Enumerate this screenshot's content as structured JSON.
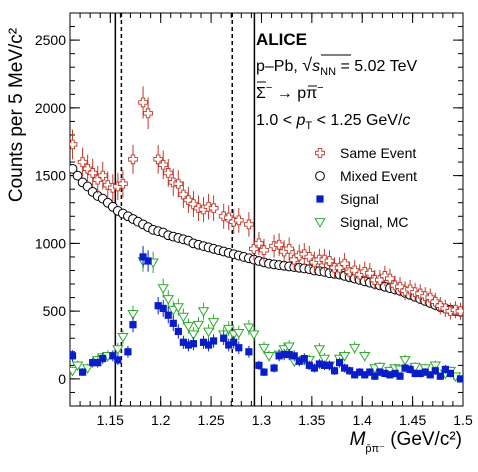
{
  "chart_data": {
    "type": "scatter",
    "title": "",
    "xlabel": {
      "main": "M",
      "subscript": "p̄π⁻",
      "unit": " (GeV/c²)"
    },
    "ylabel": "Counts per 5 MeV/c²",
    "xlim": [
      1.11,
      1.5
    ],
    "ylim": [
      -200,
      2700
    ],
    "xticks": [
      1.15,
      1.2,
      1.25,
      1.3,
      1.35,
      1.4,
      1.45,
      1.5
    ],
    "xtick_labels": [
      "1.15",
      "1.2",
      "1.25",
      "1.3",
      "1.35",
      "1.4",
      "1.45",
      "1.5"
    ],
    "yticks": [
      0,
      500,
      1000,
      1500,
      2000,
      2500
    ],
    "ytick_labels": [
      "0",
      "500",
      "1000",
      "1500",
      "2000",
      "2500"
    ],
    "grid": false,
    "legend_position": "right",
    "annotations": {
      "experiment": "ALICE",
      "system": "p–Pb, √s_NN = 5.02 TeV",
      "decay": "Σ̄⁻ → p̄π⁻",
      "pt_range": "1.0 < p_T < 1.25 GeV/c"
    },
    "annotation_parts": {
      "system_prefix": "p–Pb, ",
      "sqrt_symbol": "√",
      "s_letter": "s",
      "nn_sub": "NN",
      "system_value": " = 5.02 TeV",
      "decay_left": "Σ",
      "decay_minus": "−",
      "decay_arrow": " → ",
      "decay_p": "p",
      "decay_pi": "π",
      "decay_pi_minus": "−",
      "pt_left": "1.0 < ",
      "pt_p": "p",
      "pt_T": "T",
      "pt_right": " < 1.25 GeV/",
      "pt_c": "c"
    },
    "vertical_lines": [
      {
        "x": 1.155,
        "style": "solid"
      },
      {
        "x": 1.161,
        "style": "dashed"
      },
      {
        "x": 1.271,
        "style": "dashed"
      },
      {
        "x": 1.293,
        "style": "solid"
      }
    ],
    "series": [
      {
        "name": "Same Event",
        "marker": "cross-open",
        "color": "#c0392b",
        "x": [
          1.1125,
          1.1225,
          1.1275,
          1.1325,
          1.1375,
          1.1425,
          1.1475,
          1.1525,
          1.1575,
          1.1625,
          1.1725,
          1.1825,
          1.1875,
          1.1975,
          1.2025,
          1.2075,
          1.2125,
          1.2175,
          1.2225,
          1.2275,
          1.2325,
          1.2375,
          1.2425,
          1.2475,
          1.2525,
          1.2625,
          1.2675,
          1.2725,
          1.2775,
          1.2875,
          1.2925,
          1.2975,
          1.3025,
          1.3125,
          1.3175,
          1.3225,
          1.3275,
          1.3325,
          1.3375,
          1.3425,
          1.3475,
          1.3525,
          1.3575,
          1.3625,
          1.3675,
          1.3725,
          1.3775,
          1.3825,
          1.3875,
          1.3925,
          1.3975,
          1.4025,
          1.4075,
          1.4125,
          1.4175,
          1.4225,
          1.4275,
          1.4325,
          1.4375,
          1.4425,
          1.4475,
          1.4525,
          1.4575,
          1.4625,
          1.4675,
          1.4725,
          1.4775,
          1.4825,
          1.4875,
          1.4925,
          1.4975
        ],
        "y": [
          1730,
          1600,
          1550,
          1520,
          1470,
          1500,
          1430,
          1410,
          1420,
          1440,
          1620,
          2040,
          1960,
          1620,
          1580,
          1520,
          1450,
          1440,
          1360,
          1320,
          1290,
          1260,
          1250,
          1270,
          1260,
          1200,
          1190,
          1160,
          1170,
          1140,
          960,
          1000,
          950,
          980,
          990,
          940,
          960,
          880,
          910,
          920,
          900,
          860,
          880,
          880,
          870,
          820,
          820,
          850,
          790,
          800,
          770,
          790,
          780,
          730,
          730,
          760,
          740,
          690,
          680,
          650,
          660,
          640,
          630,
          610,
          600,
          570,
          540,
          520,
          500,
          510,
          500
        ]
      },
      {
        "name": "Mixed Event",
        "marker": "circle-open",
        "color": "#000000",
        "x": [
          1.1125,
          1.1175,
          1.1225,
          1.1275,
          1.1325,
          1.1375,
          1.1425,
          1.1475,
          1.1525,
          1.1575,
          1.1625,
          1.1675,
          1.1725,
          1.1775,
          1.1825,
          1.1875,
          1.1925,
          1.1975,
          1.2025,
          1.2075,
          1.2125,
          1.2175,
          1.2225,
          1.2275,
          1.2325,
          1.2375,
          1.2425,
          1.2475,
          1.2525,
          1.2575,
          1.2625,
          1.2675,
          1.2725,
          1.2775,
          1.2825,
          1.2875,
          1.2925,
          1.2975,
          1.3025,
          1.3075,
          1.3125,
          1.3175,
          1.3225,
          1.3275,
          1.3325,
          1.3375,
          1.3425,
          1.3475,
          1.3525,
          1.3575,
          1.3625,
          1.3675,
          1.3725,
          1.3775,
          1.3825,
          1.3875,
          1.3925,
          1.3975,
          1.4025,
          1.4075,
          1.4125,
          1.4175,
          1.4225,
          1.4275,
          1.4325,
          1.4375,
          1.4425,
          1.4475,
          1.4525,
          1.4575,
          1.4625,
          1.4675,
          1.4725,
          1.4775,
          1.4825,
          1.4875,
          1.4925,
          1.4975
        ],
        "y": [
          1550,
          1500,
          1450,
          1420,
          1380,
          1350,
          1330,
          1300,
          1270,
          1240,
          1220,
          1200,
          1180,
          1160,
          1140,
          1120,
          1100,
          1090,
          1080,
          1060,
          1050,
          1040,
          1030,
          1020,
          1000,
          990,
          980,
          970,
          960,
          950,
          940,
          930,
          920,
          910,
          900,
          890,
          880,
          870,
          860,
          850,
          845,
          840,
          835,
          830,
          825,
          820,
          815,
          810,
          800,
          795,
          790,
          780,
          775,
          770,
          760,
          750,
          740,
          730,
          720,
          710,
          700,
          690,
          680,
          670,
          660,
          650,
          635,
          620,
          605,
          590,
          575,
          560,
          545,
          530,
          520,
          510,
          500,
          495
        ]
      },
      {
        "name": "Signal",
        "marker": "square-filled",
        "color": "#0a1ec8",
        "x": [
          1.1125,
          1.1225,
          1.1325,
          1.1375,
          1.1425,
          1.1525,
          1.1575,
          1.1675,
          1.1725,
          1.1825,
          1.1875,
          1.1975,
          1.2025,
          1.2075,
          1.2125,
          1.2175,
          1.2225,
          1.2275,
          1.2325,
          1.2425,
          1.2475,
          1.2525,
          1.2625,
          1.2675,
          1.2725,
          1.2775,
          1.2875,
          1.2975,
          1.3025,
          1.3125,
          1.3175,
          1.3225,
          1.3275,
          1.3325,
          1.3375,
          1.3425,
          1.3475,
          1.3525,
          1.3575,
          1.3625,
          1.3675,
          1.3725,
          1.3775,
          1.3825,
          1.3875,
          1.3925,
          1.3975,
          1.4025,
          1.4075,
          1.4125,
          1.4175,
          1.4225,
          1.4275,
          1.4325,
          1.4375,
          1.4425,
          1.4475,
          1.4525,
          1.4575,
          1.4625,
          1.4675,
          1.4725,
          1.4775,
          1.4825,
          1.4875,
          1.4975
        ],
        "y": [
          170,
          50,
          120,
          120,
          150,
          170,
          140,
          200,
          400,
          900,
          870,
          540,
          520,
          470,
          410,
          350,
          270,
          250,
          260,
          270,
          250,
          280,
          300,
          250,
          270,
          230,
          200,
          100,
          50,
          80,
          170,
          180,
          180,
          170,
          130,
          150,
          100,
          80,
          110,
          100,
          100,
          60,
          120,
          80,
          60,
          30,
          50,
          30,
          50,
          20,
          50,
          40,
          30,
          40,
          20,
          80,
          70,
          40,
          40,
          50,
          30,
          60,
          20,
          70,
          40,
          0
        ]
      },
      {
        "name": "Signal, MC",
        "marker": "triangle-down-open",
        "color": "#2eaa2e",
        "x": [
          1.1125,
          1.1175,
          1.1275,
          1.1375,
          1.1425,
          1.1475,
          1.1575,
          1.1625,
          1.1725,
          1.1825,
          1.1925,
          1.2025,
          1.2075,
          1.2125,
          1.2175,
          1.2225,
          1.2275,
          1.2325,
          1.2375,
          1.2425,
          1.2475,
          1.2525,
          1.2625,
          1.2675,
          1.2725,
          1.2775,
          1.2875,
          1.2925,
          1.3025,
          1.3075,
          1.3175,
          1.3225,
          1.3275,
          1.3325,
          1.3425,
          1.3475,
          1.3575,
          1.3625,
          1.3675,
          1.3775,
          1.3825,
          1.3925,
          1.4025,
          1.4125,
          1.4175,
          1.4275,
          1.4325,
          1.4375,
          1.4425,
          1.4525,
          1.4625,
          1.4725,
          1.4825,
          1.4875,
          1.4925
        ],
        "y": [
          60,
          100,
          80,
          140,
          160,
          170,
          220,
          310,
          480,
          870,
          860,
          670,
          590,
          510,
          530,
          460,
          390,
          330,
          400,
          500,
          350,
          420,
          330,
          370,
          330,
          340,
          380,
          330,
          230,
          170,
          180,
          220,
          240,
          130,
          140,
          140,
          220,
          150,
          100,
          150,
          170,
          230,
          170,
          80,
          90,
          60,
          80,
          70,
          140,
          90,
          80,
          100,
          40,
          60,
          20
        ]
      }
    ]
  }
}
